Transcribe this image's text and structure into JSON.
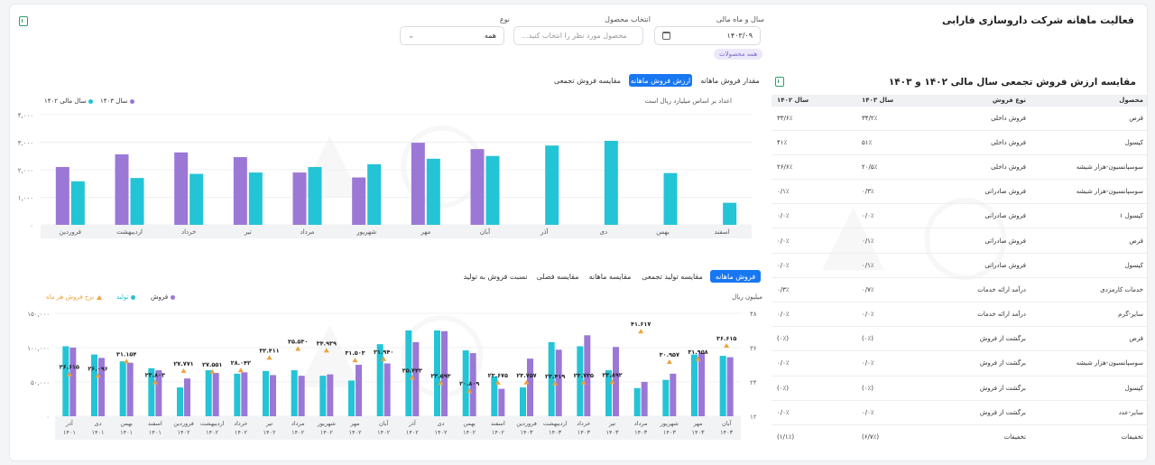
{
  "page": {
    "title": "فعالیت ماهانه شرکت داروسازی فارابی",
    "filters": {
      "year_month_label": "سال و ماه مالی",
      "year_month_value": "۱۴۰۳/۰۹",
      "product_label": "انتخاب محصول",
      "product_placeholder": "محصول مورد نظر را انتخاب کنید...",
      "type_label": "نوع",
      "type_value": "همه",
      "chip": "همه محصولات"
    }
  },
  "colors": {
    "cyan": "#23c4d6",
    "purple": "#9b78d6",
    "orange": "#f0a23b",
    "blue": "#1877f2"
  },
  "icons": {
    "excel": "excel-icon",
    "calendar": "calendar-icon",
    "chevron": "chevron-down-icon"
  },
  "comparison": {
    "title": "مقایسه ارزش فروش تجمعی سال مالی ۱۴۰۲ و ۱۴۰۳",
    "headers": [
      "محصول",
      "نوع فروش",
      "سال ۱۴۰۳",
      "سال ۱۴۰۲"
    ],
    "rows": [
      [
        "قرص",
        "فروش داخلی",
        "۳۴/۲٪",
        "۳۳/۶٪"
      ],
      [
        "کپسول",
        "فروش داخلی",
        "۵۱٪",
        "۴۱٪"
      ],
      [
        "سوسپانسیون-هزار شیشه",
        "فروش داخلی",
        "۲۰/۵٪",
        "۲۶/۶٪"
      ],
      [
        "سوسپانسیون-هزار شیشه",
        "فروش صادراتی",
        "۰/۳٪",
        "۰/۱٪"
      ],
      [
        "کپسول ۱",
        "فروش صادراتی",
        "۰/۰٪",
        "۰/۰٪"
      ],
      [
        "قرص",
        "فروش صادراتی",
        "۰/۱٪",
        "۰/۰٪"
      ],
      [
        "کپسول",
        "فروش صادراتی",
        "۰/۱٪",
        "۰/۰٪"
      ],
      [
        "خدمات کارمزدی",
        "درآمد ارائه خدمات",
        "۰/۷٪",
        "۰/۳٪"
      ],
      [
        "سایر-گرم",
        "درآمد ارائه خدمات",
        "۰/۰٪",
        "۰/۰٪"
      ],
      [
        "قرص",
        "برگشت از فروش",
        "(۰٪)",
        "(۰٪)"
      ],
      [
        "سوسپانسیون-هزار شیشه",
        "برگشت از فروش",
        "۰/۰٪",
        "۰/۰٪"
      ],
      [
        "کپسول",
        "برگشت از فروش",
        "(۰٪)",
        "(۰٪)"
      ],
      [
        "سایر-عدد",
        "برگشت از فروش",
        "۰/۰٪",
        "۰/۰٪"
      ],
      [
        "تخفیفات",
        "تخفیفات",
        "(۶/۷٪)",
        "(۱/۱٪)"
      ]
    ]
  },
  "top_chart_panel": {
    "tabs": [
      "مقدار فروش ماهانه",
      "ارزش فروش ماهانه",
      "مقایسه فروش تجمعی"
    ],
    "active_tab": 1,
    "unit_note": "اعداد بر اساس میلیارد ریال است",
    "legend_1403": "سال ۱۴۰۳",
    "legend_1402": "سال مالی ۱۴۰۲"
  },
  "bottom_chart_panel": {
    "tabs": [
      "فروش ماهانه",
      "مقایسه تولید تجمعی",
      "مقایسه ماهانه",
      "مقایسه فصلی",
      "نسبت فروش به تولید"
    ],
    "active_tab": 0,
    "right_axis_title": "میلیون ریال",
    "legend_sales": "فروش",
    "legend_production": "تولید",
    "legend_rate": "نرخ فروش هر ماه"
  },
  "chart_data": [
    {
      "type": "bar",
      "title": "",
      "categories": [
        "اسفند",
        "بهمن",
        "دی",
        "آذر",
        "آبان",
        "مهر",
        "شهریور",
        "مرداد",
        "تیر",
        "خرداد",
        "اردیبهشت",
        "فروردین"
      ],
      "y_ticks": [
        "۰",
        "۱,۰۰۰",
        "۲,۰۰۰",
        "۳,۰۰۰",
        "۴,۰۰۰"
      ],
      "ylim": [
        0,
        4000
      ],
      "series": [
        {
          "name": "سال ۱۴۰۳",
          "values": [
            800,
            1880,
            3050,
            2880,
            2500,
            2400,
            2200,
            2100,
            1900,
            1850,
            1700,
            1580
          ]
        },
        {
          "name": "سال مالی ۱۴۰۲",
          "values": [
            null,
            null,
            null,
            null,
            2750,
            2980,
            1720,
            1900,
            2460,
            2630,
            2560,
            2100
          ]
        }
      ],
      "grid": true,
      "legend": "top-left"
    },
    {
      "type": "bar",
      "title": "",
      "categories": [
        [
          "آبان",
          "۱۴۰۳"
        ],
        [
          "مهر",
          "۱۴۰۳"
        ],
        [
          "شهریور",
          "۱۴۰۳"
        ],
        [
          "مرداد",
          "۱۴۰۳"
        ],
        [
          "تیر",
          "۱۴۰۳"
        ],
        [
          "خرداد",
          "۱۴۰۳"
        ],
        [
          "اردیبهشت",
          "۱۴۰۳"
        ],
        [
          "فروردین",
          "۱۴۰۳"
        ],
        [
          "اسفند",
          "۱۴۰۲"
        ],
        [
          "بهمن",
          "۱۴۰۲"
        ],
        [
          "دی",
          "۱۴۰۲"
        ],
        [
          "آذر",
          "۱۴۰۲"
        ],
        [
          "آبان",
          "۱۴۰۲"
        ],
        [
          "مهر",
          "۱۴۰۲"
        ],
        [
          "شهریور",
          "۱۴۰۲"
        ],
        [
          "مرداد",
          "۱۴۰۲"
        ],
        [
          "تیر",
          "۱۴۰۲"
        ],
        [
          "خرداد",
          "۱۴۰۲"
        ],
        [
          "اردیبهشت",
          "۱۴۰۲"
        ],
        [
          "فروردین",
          "۱۴۰۲"
        ],
        [
          "اسفند",
          "۱۴۰۱"
        ],
        [
          "بهمن",
          "۱۴۰۱"
        ],
        [
          "دی",
          "۱۴۰۱"
        ],
        [
          "آذر",
          "۱۴۰۱"
        ]
      ],
      "y_ticks_left": [
        "۰",
        "۵۰,۰۰۰",
        "۱۰۰,۰۰۰",
        "۱۵۰,۰۰۰"
      ],
      "y_ticks_right": [
        "۱۲",
        "۲۴",
        "۳۶",
        "۴۸"
      ],
      "ylim": [
        0,
        150000
      ],
      "y2lim": [
        12,
        48
      ],
      "series": [
        {
          "name": "تولید",
          "values": [
            88000,
            90000,
            53000,
            41000,
            67000,
            102000,
            108000,
            42000,
            58000,
            96000,
            125000,
            125000,
            105000,
            52000,
            59000,
            67000,
            66000,
            62000,
            67000,
            42000,
            70000,
            80000,
            90000,
            102000
          ]
        },
        {
          "name": "فروش",
          "values": [
            86000,
            92000,
            62000,
            50000,
            101000,
            118000,
            97000,
            84000,
            40000,
            92000,
            124000,
            108000,
            77000,
            75000,
            61000,
            59000,
            60000,
            64000,
            63000,
            55000,
            67000,
            78000,
            85000,
            100000
          ]
        },
        {
          "name": "نرخ فروش هر ماه",
          "values": [
            36.615,
            31.958,
            30.957,
            41.617,
            23.892,
            23.735,
            23.419,
            23.757,
            23.675,
            20.809,
            23.593,
            25.443,
            31.94,
            31.503,
            34.929,
            35.53,
            32.411,
            28.042,
            27.551,
            27.771,
            23.803,
            31.154,
            26.096,
            26.615
          ]
        }
      ],
      "point_labels": [
        "۳۶.۶۱۵",
        "۳۱.۹۵۸",
        "۳۰.۹۵۷",
        "۴۱.۶۱۷",
        "۲۳.۸۹۲",
        "۲۳.۷۳۵",
        "۲۳.۴۱۹",
        "۲۳.۷۵۷",
        "۲۳.۶۷۵",
        "۲۰.۸۰۹",
        "۲۳.۵۹۳",
        "۲۵.۴۴۳",
        "۳۱.۹۴۰",
        "۳۱.۵۰۳",
        "۳۴.۹۲۹",
        "۳۵.۵۳۰",
        "۳۲.۴۱۱",
        "۲۸.۰۴۲",
        "۲۷.۵۵۱",
        "۲۷.۷۷۱",
        "۲۳.۸۰۳",
        "۳۱.۱۵۴",
        "۲۶.۰۹۶",
        "۲۶.۶۱۵"
      ],
      "grid": true,
      "legend": "top-left"
    }
  ]
}
